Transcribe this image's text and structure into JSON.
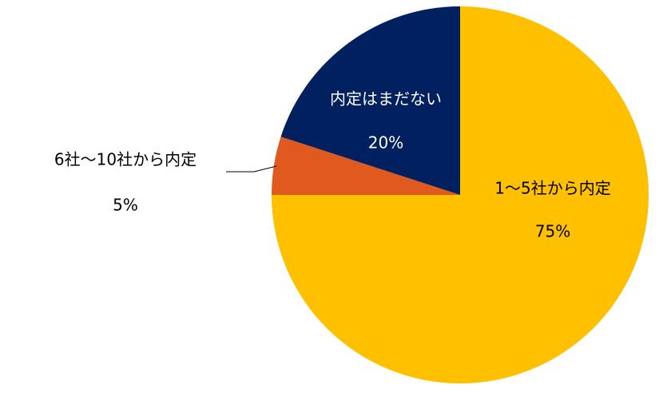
{
  "chart_data": {
    "type": "pie",
    "categories": [
      "1～5社から内定",
      "6社～10社から内定",
      "内定はまだない"
    ],
    "values": [
      75,
      5,
      20
    ],
    "value_labels": [
      "75%",
      "5%",
      "20%"
    ],
    "colors": [
      "#ffc000",
      "#e0591f",
      "#002060"
    ]
  }
}
